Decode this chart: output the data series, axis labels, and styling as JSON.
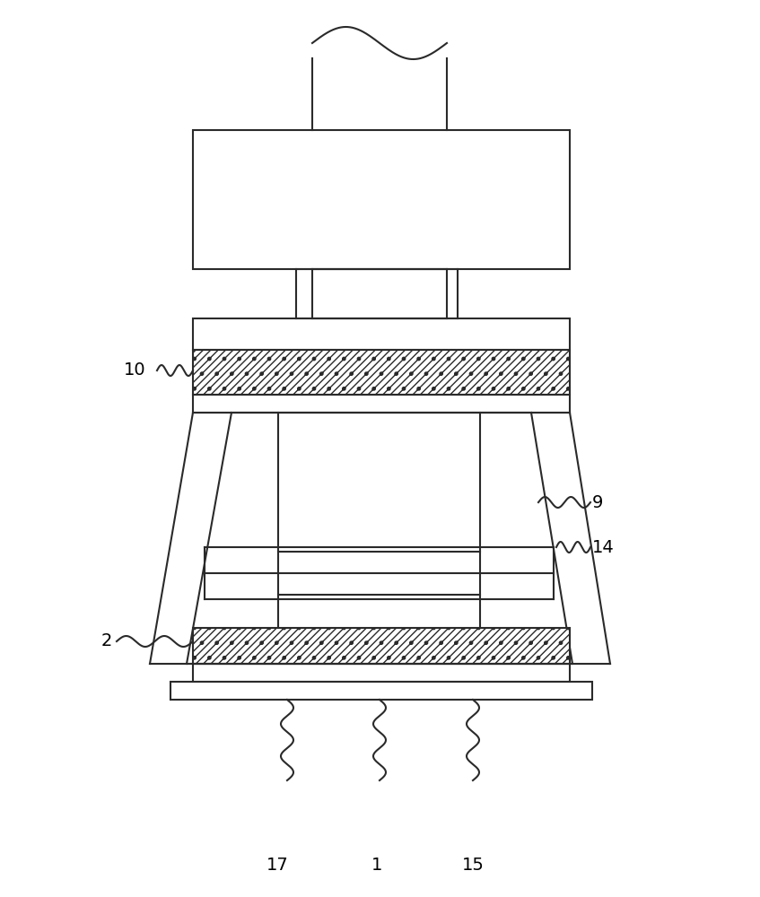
{
  "bg_color": "#ffffff",
  "line_color": "#2a2a2a",
  "figsize": [
    8.47,
    10.0
  ],
  "dpi": 100,
  "lw": 1.5
}
